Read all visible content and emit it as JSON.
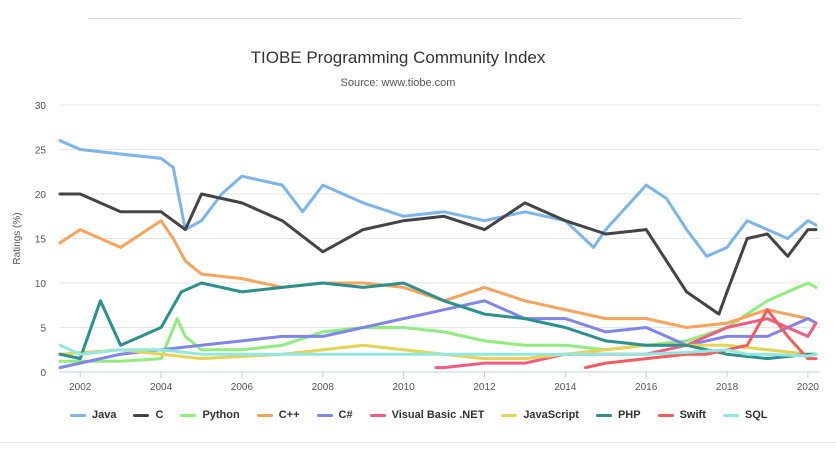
{
  "chart_data": {
    "type": "line",
    "title": "TIOBE Programming Community Index",
    "subtitle": "Source: www.tiobe.com",
    "xlabel": "",
    "ylabel": "Ratings (%)",
    "xlim": [
      2001.5,
      2020.3
    ],
    "ylim": [
      0,
      30
    ],
    "yticks": [
      "0",
      "5",
      "10",
      "15",
      "20",
      "25",
      "30"
    ],
    "xticks": [
      "2002",
      "2004",
      "2006",
      "2008",
      "2010",
      "2012",
      "2014",
      "2016",
      "2018",
      "2020"
    ],
    "grid": true,
    "legend": "bottom",
    "series": [
      {
        "name": "Java",
        "color": "#7cb5ec",
        "x": [
          2001.5,
          2002,
          2003,
          2004,
          2004.3,
          2004.6,
          2005,
          2005.5,
          2006,
          2007,
          2007.5,
          2008,
          2009,
          2010,
          2011,
          2012,
          2013,
          2014,
          2014.7,
          2015,
          2016,
          2016.5,
          2017,
          2017.5,
          2018,
          2018.5,
          2019,
          2019.5,
          2020,
          2020.2
        ],
        "y": [
          26,
          25,
          24.5,
          24,
          23,
          16,
          17,
          20,
          22,
          21,
          18,
          21,
          19,
          17.5,
          18,
          17,
          18,
          17,
          14,
          16,
          21,
          19.5,
          16,
          13,
          14,
          17,
          16,
          15,
          17,
          16.5
        ]
      },
      {
        "name": "C",
        "color": "#434348",
        "x": [
          2001.5,
          2002,
          2003,
          2004,
          2004.6,
          2005,
          2006,
          2007,
          2008,
          2009,
          2010,
          2011,
          2012,
          2013,
          2014,
          2015,
          2016,
          2017,
          2017.8,
          2018,
          2018.5,
          2019,
          2019.5,
          2020,
          2020.2
        ],
        "y": [
          20,
          20,
          18,
          18,
          16,
          20,
          19,
          17,
          13.5,
          16,
          17,
          17.5,
          16,
          19,
          17,
          15.5,
          16,
          9,
          6.5,
          9,
          15,
          15.5,
          13,
          16,
          16
        ]
      },
      {
        "name": "Python",
        "color": "#90ed7d",
        "x": [
          2001.5,
          2003,
          2004,
          2004.4,
          2004.6,
          2005,
          2006,
          2007,
          2008,
          2009,
          2010,
          2011,
          2012,
          2013,
          2014,
          2015,
          2016,
          2017,
          2018,
          2019,
          2020,
          2020.2
        ],
        "y": [
          1.2,
          1.2,
          1.5,
          6,
          4,
          2.5,
          2.5,
          3,
          4.5,
          5,
          5,
          4.5,
          3.5,
          3,
          3,
          2.5,
          3,
          3.5,
          5,
          8,
          10,
          9.5
        ]
      },
      {
        "name": "C++",
        "color": "#f7a35c",
        "x": [
          2001.5,
          2002,
          2003,
          2004,
          2004.3,
          2004.6,
          2005,
          2006,
          2007,
          2008,
          2009,
          2010,
          2011,
          2012,
          2013,
          2014,
          2015,
          2016,
          2017,
          2018,
          2019,
          2020,
          2020.2
        ],
        "y": [
          14.5,
          16,
          14,
          17,
          15,
          12.5,
          11,
          10.5,
          9.5,
          10,
          10,
          9.5,
          8,
          9.5,
          8,
          7,
          6,
          6,
          5,
          5.5,
          7,
          6,
          5.5
        ]
      },
      {
        "name": "C#",
        "color": "#8085e9",
        "x": [
          2001.5,
          2002,
          2003,
          2004,
          2005,
          2006,
          2007,
          2008,
          2009,
          2010,
          2011,
          2012,
          2013,
          2014,
          2015,
          2016,
          2017,
          2018,
          2019,
          2020,
          2020.2
        ],
        "y": [
          0.5,
          1,
          2,
          2.5,
          3,
          3.5,
          4,
          4,
          5,
          6,
          7,
          8,
          6,
          6,
          4.5,
          5,
          3,
          4,
          4,
          6,
          5.5
        ]
      },
      {
        "name": "Visual Basic .NET",
        "color": "#f15c80",
        "x": [
          2010.8,
          2011,
          2012,
          2013,
          2014,
          2015,
          2016,
          2017,
          2018,
          2019,
          2020,
          2020.2
        ],
        "y": [
          0.5,
          0.5,
          1,
          1,
          2,
          2,
          2,
          3,
          5,
          6,
          4,
          5.5
        ]
      },
      {
        "name": "JavaScript",
        "color": "#e4d354",
        "x": [
          2001.5,
          2003,
          2005,
          2007,
          2009,
          2010,
          2011,
          2012,
          2013,
          2014,
          2015,
          2016,
          2017,
          2018,
          2019,
          2020,
          2020.2
        ],
        "y": [
          2,
          2.5,
          1.5,
          2,
          3,
          2.5,
          2,
          1.5,
          1.5,
          2,
          2.5,
          3,
          3,
          3,
          2.5,
          2,
          2
        ]
      },
      {
        "name": "PHP",
        "color": "#2b908f",
        "x": [
          2001.5,
          2002,
          2002.5,
          2003,
          2004,
          2004.5,
          2005,
          2006,
          2007,
          2008,
          2009,
          2010,
          2011,
          2012,
          2013,
          2014,
          2015,
          2016,
          2017,
          2018,
          2019,
          2020,
          2020.2
        ],
        "y": [
          2,
          1.5,
          8,
          3,
          5,
          9,
          10,
          9,
          9.5,
          10,
          9.5,
          10,
          8,
          6.5,
          6,
          5,
          3.5,
          3,
          3,
          2,
          1.5,
          2,
          2
        ]
      },
      {
        "name": "Swift",
        "color": "#f45b5b",
        "x": [
          2014.5,
          2015,
          2016,
          2017,
          2017.5,
          2018,
          2018.5,
          2019,
          2019.5,
          2020,
          2020.2
        ],
        "y": [
          0.5,
          1,
          1.5,
          2,
          2,
          2.5,
          3,
          7,
          4,
          1.5,
          1.5
        ]
      },
      {
        "name": "SQL",
        "color": "#91e8e1",
        "x": [
          2001.5,
          2002,
          2003,
          2004,
          2005,
          2006,
          2008,
          2010,
          2012,
          2014,
          2016,
          2017,
          2018,
          2018.5,
          2019,
          2020,
          2020.2
        ],
        "y": [
          3,
          2,
          2.5,
          2.5,
          2,
          2,
          2,
          2,
          2,
          2,
          2,
          2.2,
          2.5,
          2,
          2,
          1.8,
          2
        ]
      }
    ]
  }
}
